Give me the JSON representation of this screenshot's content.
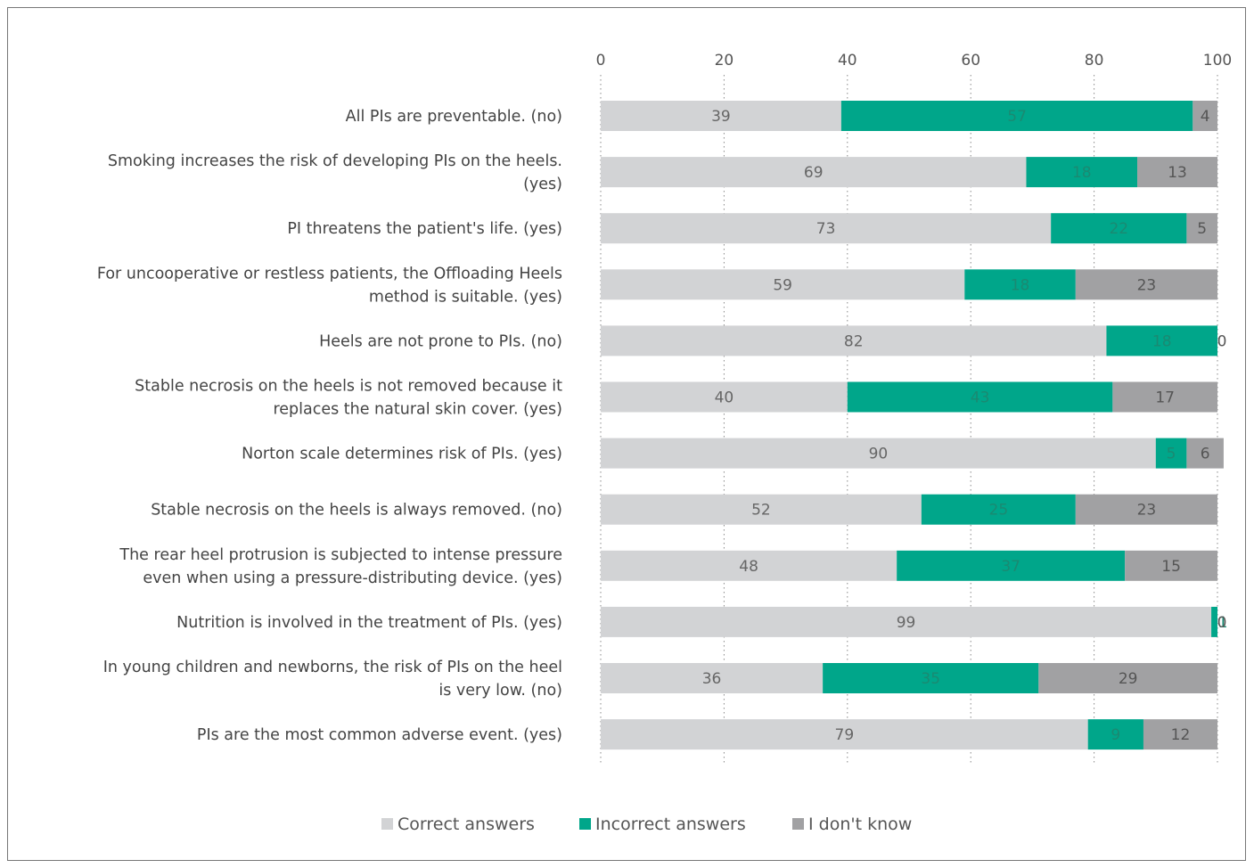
{
  "chart_data": {
    "type": "bar",
    "orientation": "horizontal",
    "stacked": true,
    "xlim": [
      0,
      100
    ],
    "xticks": [
      "0",
      "20",
      "40",
      "60",
      "80",
      "100"
    ],
    "grid": "dotted-vertical",
    "legend_position": "bottom",
    "categories": [
      [
        "All PIs are preventable. (no)"
      ],
      [
        "Smoking increases the risk of developing PIs on the heels.",
        "(yes)"
      ],
      [
        "PI threatens the patient's life. (yes)"
      ],
      [
        "For uncooperative or restless patients, the Offloading Heels",
        "method is suitable. (yes)"
      ],
      [
        "Heels are not prone to PIs. (no)"
      ],
      [
        "Stable necrosis on the heels is not removed because it",
        "replaces the natural skin cover. (yes)"
      ],
      [
        "Norton scale determines risk of PIs. (yes)"
      ],
      [
        "Stable necrosis on the heels is always removed. (no)"
      ],
      [
        "The rear heel protrusion is subjected to intense pressure",
        "even when using a pressure-distributing device. (yes)"
      ],
      [
        "Nutrition is involved in the treatment of PIs. (yes)"
      ],
      [
        "In young children and newborns, the risk of PIs on the heel",
        "is very low. (no)"
      ],
      [
        "PIs are the most common adverse event. (yes)"
      ]
    ],
    "series": [
      {
        "name": "Correct answers",
        "color": "#d2d3d5",
        "label_color": "#666666",
        "values": [
          39,
          69,
          73,
          59,
          82,
          40,
          90,
          52,
          48,
          99,
          36,
          79
        ]
      },
      {
        "name": "Incorrect answers",
        "color": "#00a68a",
        "label_color": "#1a8a72",
        "values": [
          57,
          18,
          22,
          18,
          18,
          43,
          5,
          25,
          37,
          1,
          35,
          9
        ]
      },
      {
        "name": "I don't know",
        "color": "#a1a1a3",
        "label_color": "#555555",
        "values": [
          4,
          13,
          5,
          23,
          0,
          17,
          6,
          23,
          15,
          0,
          29,
          12
        ]
      }
    ]
  }
}
